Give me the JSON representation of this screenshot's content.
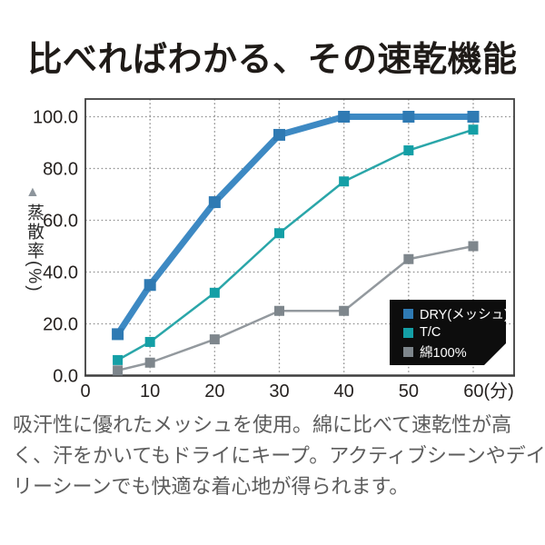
{
  "title": "比べればわかる、その速乾機能",
  "chart_data": {
    "type": "line",
    "ylabel": "蒸散率(%)",
    "ylabel_arrow": "▲",
    "x": [
      5,
      10,
      20,
      30,
      40,
      50,
      60
    ],
    "x_ticks": [
      0,
      10,
      20,
      30,
      40,
      50,
      60
    ],
    "x_tick_labels": [
      "0",
      "10",
      "20",
      "30",
      "40",
      "50",
      "60(分)"
    ],
    "y_ticks": [
      0,
      20,
      40,
      60,
      80,
      100
    ],
    "y_tick_labels": [
      "0.0",
      "20.0",
      "40.0",
      "60.0",
      "80.0",
      "100.0"
    ],
    "xlim": [
      0,
      66.3
    ],
    "ylim": [
      0,
      107
    ],
    "grid": "dotted",
    "grid_color": "#8f8f8f",
    "border_color": "#3f3f3f",
    "series": [
      {
        "name": "DRY(メッシュ)",
        "values": [
          16,
          35,
          67,
          93,
          100,
          100,
          100
        ],
        "color": "#3d89c3",
        "marker_color": "#2f7ab3",
        "line_width": 7,
        "marker_size": 13
      },
      {
        "name": "T/C",
        "values": [
          6,
          13,
          32,
          55,
          75,
          87,
          95
        ],
        "color": "#2aa6a9",
        "marker_color": "#149fa6",
        "line_width": 2.5,
        "marker_size": 11
      },
      {
        "name": "綿100%",
        "values": [
          2,
          5,
          14,
          25,
          25,
          45,
          50
        ],
        "color": "#93999e",
        "marker_color": "#7e868c",
        "line_width": 2.5,
        "marker_size": 11
      }
    ],
    "legend": {
      "position": "bottom-right",
      "background": "#0d0d0d",
      "text_color": "#ffffff"
    }
  },
  "caption_lines": [
    "吸汗性に優れたメッシュを使用。綿に比べて速乾性が高",
    "く、汗をかいてもドライにキープ。アクティブシーンやデイ",
    "リーシーンでも快適な着心地が得られます。"
  ]
}
